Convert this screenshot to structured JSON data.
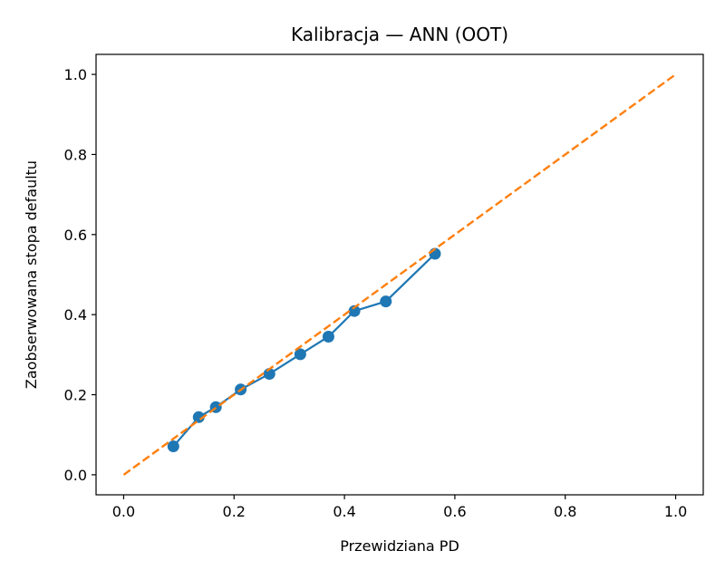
{
  "chart_data": {
    "type": "line",
    "title": "Kalibracja — ANN (OOT)",
    "xlabel": "Przewidziana PD",
    "ylabel": "Zaobserwowana stopa defaultu",
    "xlim": [
      -0.05,
      1.05
    ],
    "ylim": [
      -0.05,
      1.05
    ],
    "x_ticks": [
      0.0,
      0.2,
      0.4,
      0.6,
      0.8,
      1.0
    ],
    "y_ticks": [
      0.0,
      0.2,
      0.4,
      0.6,
      0.8,
      1.0
    ],
    "x_tick_labels": [
      "0.0",
      "0.2",
      "0.4",
      "0.6",
      "0.8",
      "1.0"
    ],
    "y_tick_labels": [
      "0.0",
      "0.2",
      "0.4",
      "0.6",
      "0.8",
      "1.0"
    ],
    "grid": false,
    "series": [
      {
        "style": "line-markers",
        "color": "#1f77b4",
        "x": [
          0.09,
          0.136,
          0.167,
          0.212,
          0.264,
          0.32,
          0.371,
          0.418,
          0.475,
          0.564
        ],
        "y": [
          0.071,
          0.144,
          0.169,
          0.213,
          0.252,
          0.301,
          0.345,
          0.409,
          0.433,
          0.552
        ]
      },
      {
        "style": "dashed-line",
        "color": "#ff7f0e",
        "x": [
          0.0,
          1.0
        ],
        "y": [
          0.0,
          1.0
        ]
      }
    ]
  }
}
